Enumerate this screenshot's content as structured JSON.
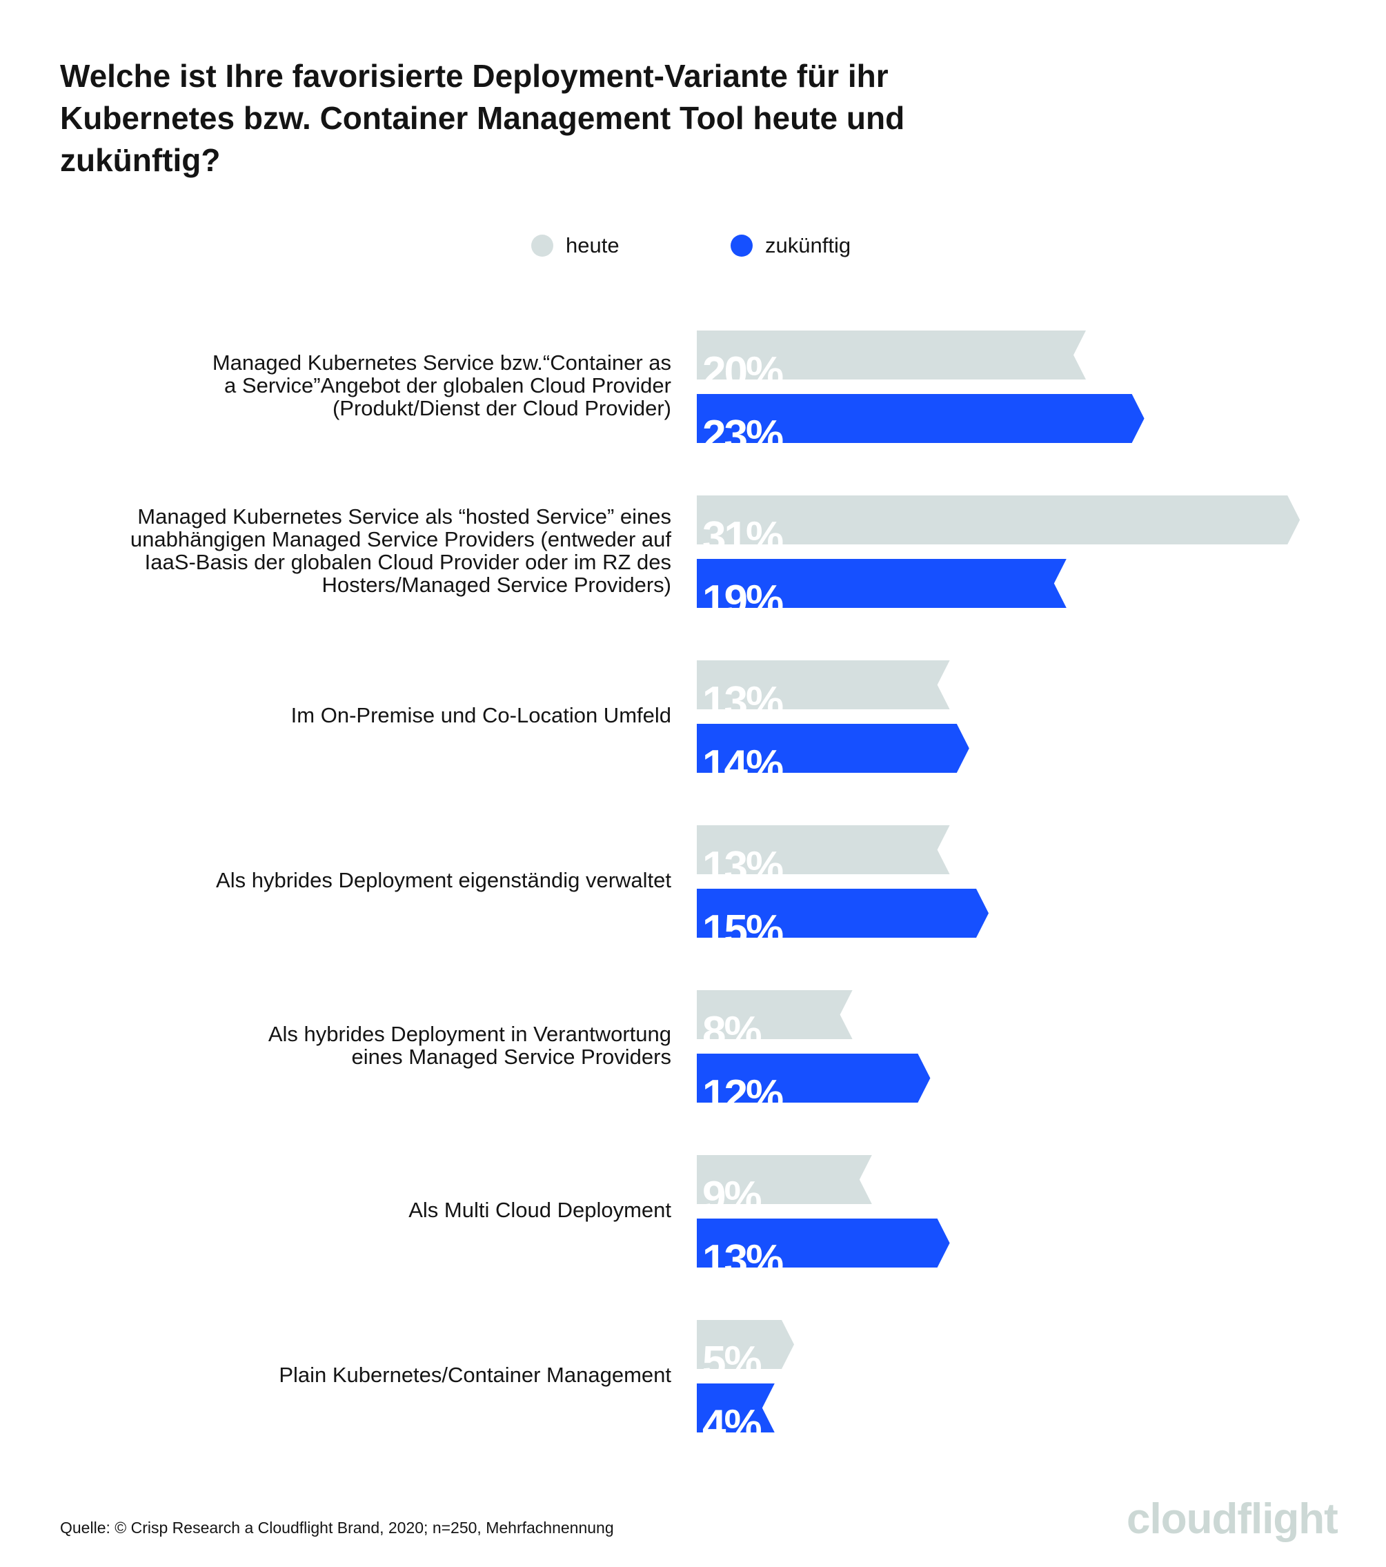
{
  "title": "Welche ist Ihre favorisierte Deployment-Variante für ihr Kubernetes bzw. Container Management Tool heute und zukünftig?",
  "colors": {
    "heute": "#d5dfdf",
    "zukuenftig": "#1650ff",
    "value_text": "#ffffff"
  },
  "chart_data": {
    "type": "bar",
    "orientation": "horizontal",
    "title": "Welche ist Ihre favorisierte Deployment-Variante für ihr Kubernetes bzw. Container Management Tool heute und zukünftig?",
    "categories": [
      "Managed Kubernetes Service bzw.“Container as a Service”Angebot der globalen Cloud Provider (Produkt/Dienst der Cloud Provider)",
      "Managed Kubernetes Service als “hosted Service” eines unabhängigen Managed Service Providers (entweder auf IaaS-Basis der globalen Cloud Provider oder im RZ des Hosters/Managed Service Providers)",
      "Im On-Premise und Co-Location Umfeld",
      "Als hybrides Deployment eigenständig verwaltet",
      "Als hybrides Deployment in Verantwortung eines Managed Service Providers",
      "Als Multi Cloud Deployment",
      "Plain Kubernetes/Container Management"
    ],
    "label_lines": [
      [
        "Managed Kubernetes Service bzw.“Container as",
        "a Service”Angebot der globalen Cloud Provider",
        "(Produkt/Dienst der Cloud Provider)"
      ],
      [
        "Managed Kubernetes Service als “hosted Service” eines",
        "unabhängigen Managed Service Providers (entweder auf",
        "IaaS-Basis der globalen Cloud Provider oder im RZ des",
        "Hosters/Managed Service Providers)"
      ],
      [
        "Im On-Premise und Co-Location Umfeld"
      ],
      [
        "Als hybrides Deployment eigenständig verwaltet"
      ],
      [
        "Als hybrides Deployment in Verantwortung",
        "eines Managed Service Providers"
      ],
      [
        "Als Multi Cloud Deployment"
      ],
      [
        "Plain Kubernetes/Container Management"
      ]
    ],
    "series": [
      {
        "name": "heute",
        "values": [
          20,
          31,
          13,
          13,
          8,
          9,
          5
        ]
      },
      {
        "name": "zukünftig",
        "values": [
          23,
          19,
          14,
          15,
          12,
          13,
          4
        ]
      }
    ],
    "value_suffix": "%",
    "legend_position": "top-center",
    "xlabel": "",
    "ylabel": "",
    "grid": false
  },
  "footer": "Quelle: © Crisp Research a Cloudflight Brand, 2020; n=250, Mehrfachnennung",
  "logo": "cloudflight"
}
